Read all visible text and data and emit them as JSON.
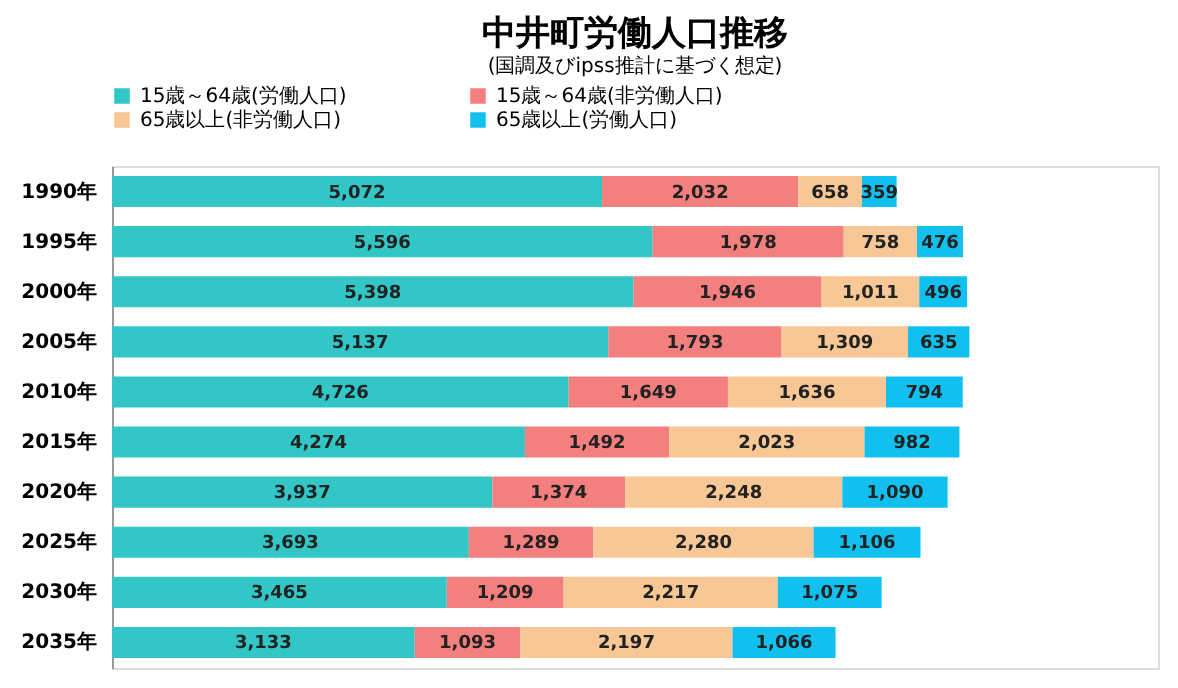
{
  "chart_data": {
    "type": "bar",
    "orientation": "horizontal",
    "stacked": true,
    "legend": "top",
    "title": "中井町労働人口推移",
    "subtitle": "(国調及びipss推計に基づく想定)",
    "categories": [
      "1990年",
      "1995年",
      "2000年",
      "2005年",
      "2010年",
      "2015年",
      "2020年",
      "2025年",
      "2030年",
      "2035年"
    ],
    "series": [
      {
        "name": "15歳～64歳(労働人口)",
        "color": "#33c6c6",
        "values": [
          5072,
          5596,
          5398,
          5137,
          4726,
          4274,
          3937,
          3693,
          3465,
          3133
        ],
        "value_labels": [
          "5,072",
          "5,596",
          "5,398",
          "5,137",
          "4,726",
          "4,274",
          "3,937",
          "3,693",
          "3,465",
          "3,133"
        ]
      },
      {
        "name": "15歳～64歳(非労働人口)",
        "color": "#f47f7f",
        "values": [
          2032,
          1978,
          1946,
          1793,
          1649,
          1492,
          1374,
          1289,
          1209,
          1093
        ],
        "value_labels": [
          "2,032",
          "1,978",
          "1,946",
          "1,793",
          "1,649",
          "1,492",
          "1,374",
          "1,289",
          "1,209",
          "1,093"
        ]
      },
      {
        "name": "65歳以上(非労働人口)",
        "color": "#f7c896",
        "values": [
          658,
          758,
          1011,
          1309,
          1636,
          2023,
          2248,
          2280,
          2217,
          2197
        ],
        "value_labels": [
          "658",
          "758",
          "1,011",
          "1,309",
          "1,636",
          "2,023",
          "2,248",
          "2,280",
          "2,217",
          "2,197"
        ]
      },
      {
        "name": "65歳以上(労働人口)",
        "color": "#12c0f0",
        "values": [
          359,
          476,
          496,
          635,
          794,
          982,
          1090,
          1106,
          1075,
          1066
        ],
        "value_labels": [
          "359",
          "476",
          "496",
          "635",
          "794",
          "982",
          "1,090",
          "1,106",
          "1,075",
          "1,066"
        ]
      }
    ]
  }
}
